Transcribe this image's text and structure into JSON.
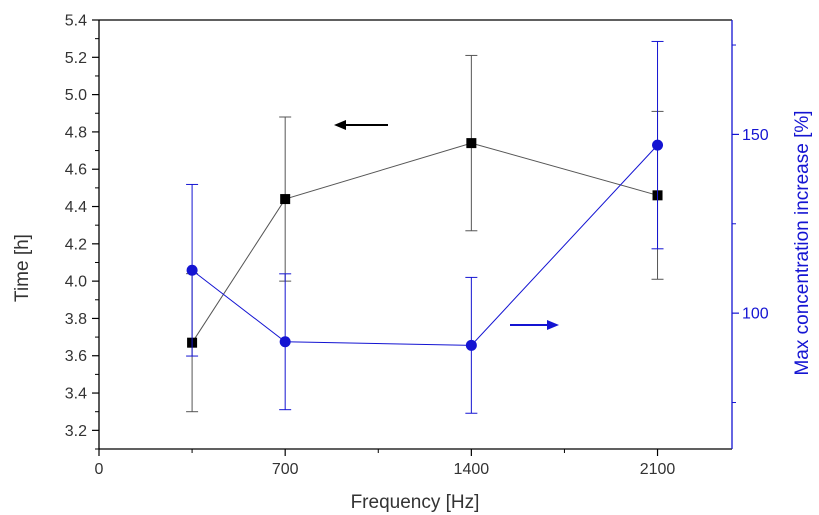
{
  "chart_data": {
    "type": "line",
    "xlabel": "Frequency [Hz]",
    "ylabel_left": "Time [h]",
    "ylabel_right": "Max concentration increase [%]",
    "xlim": [
      0,
      2380
    ],
    "x_ticks": [
      0,
      700,
      1400,
      2100
    ],
    "x_tick_labels": [
      "0",
      "700",
      "1400",
      "2100"
    ],
    "ylim_left": [
      3.1,
      5.4
    ],
    "y_ticks_left": [
      3.2,
      3.4,
      3.6,
      3.8,
      4.0,
      4.2,
      4.4,
      4.6,
      4.8,
      5.0,
      5.2,
      5.4
    ],
    "y_tick_labels_left": [
      "3.2",
      "3.4",
      "3.6",
      "3.8",
      "4.0",
      "4.2",
      "4.4",
      "4.6",
      "4.8",
      "5.0",
      "5.2",
      "5.4"
    ],
    "ylim_right": [
      62,
      182
    ],
    "y_ticks_right": [
      100,
      150
    ],
    "y_tick_labels_right": [
      "100",
      "150"
    ],
    "grid": false,
    "series": [
      {
        "axis": "left",
        "color": "#000000",
        "marker": "square",
        "points": [
          {
            "x": 350,
            "y": 3.67,
            "err_low": 3.3,
            "err_high": 4.04
          },
          {
            "x": 700,
            "y": 4.44,
            "err_low": 4.0,
            "err_high": 4.88
          },
          {
            "x": 1400,
            "y": 4.74,
            "err_low": 4.27,
            "err_high": 5.21
          },
          {
            "x": 2100,
            "y": 4.46,
            "err_low": 4.01,
            "err_high": 4.91
          }
        ]
      },
      {
        "axis": "right",
        "color": "#1414d2",
        "marker": "circle",
        "points": [
          {
            "x": 350,
            "y": 112,
            "err_low": 88,
            "err_high": 136
          },
          {
            "x": 700,
            "y": 92,
            "err_low": 73,
            "err_high": 111
          },
          {
            "x": 1400,
            "y": 91,
            "err_low": 72,
            "err_high": 110
          },
          {
            "x": 2100,
            "y": 147,
            "err_low": 118,
            "err_high": 176
          }
        ]
      }
    ]
  },
  "colors": {
    "left_axis": "#000000",
    "right_axis": "#1414d2"
  },
  "annotations": [
    {
      "type": "arrow",
      "direction": "left",
      "series": "left-axis",
      "color": "#000000"
    },
    {
      "type": "arrow",
      "direction": "right",
      "series": "right-axis",
      "color": "#1414d2"
    }
  ]
}
